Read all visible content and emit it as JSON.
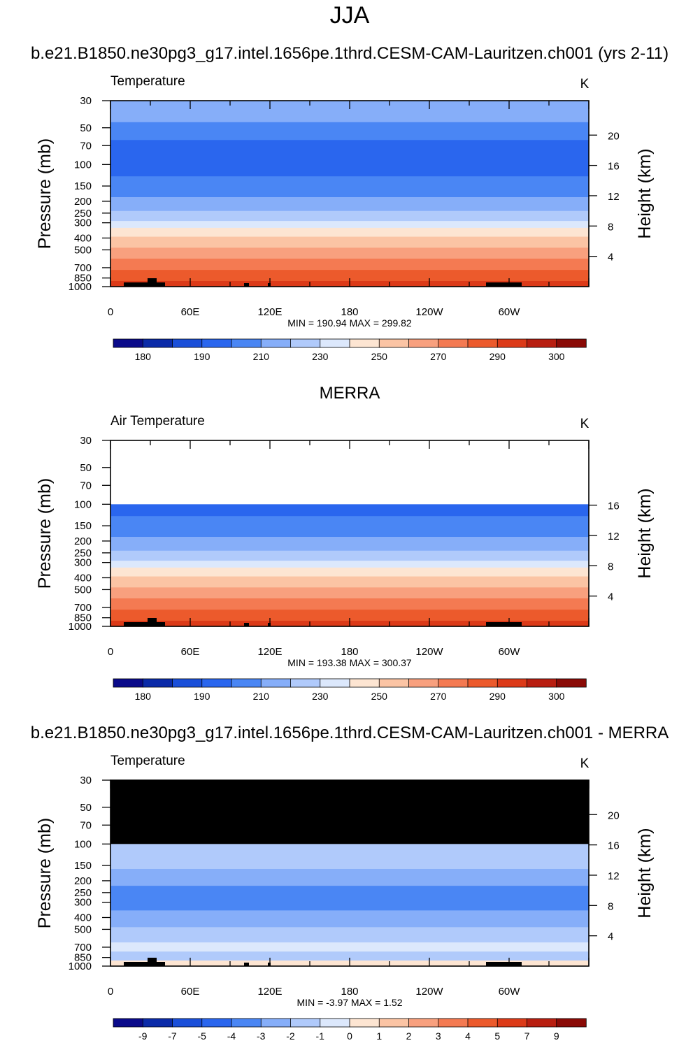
{
  "page_title": "JJA",
  "chart_data": [
    {
      "type": "heatmap",
      "panel_heading": "b.e21.B1850.ne30pg3_g17.intel.1656pe.1thrd.CESM-CAM-Lauritzen.ch001 (yrs 2-11)",
      "field_label": "Temperature",
      "units": "K",
      "ylabel": "Pressure (mb)",
      "ylabel_right": "Height (km)",
      "y_ticks": [
        "30",
        "50",
        "70",
        "100",
        "150",
        "200",
        "250",
        "300",
        "400",
        "500",
        "700",
        "850",
        "1000"
      ],
      "y_ticks_right": [
        "20",
        "16",
        "12",
        "8",
        "4"
      ],
      "x_ticks": [
        "0",
        "60E",
        "120E",
        "180",
        "120W",
        "60W"
      ],
      "stats": "MIN = 190.94  MAX = 299.82",
      "min": 190.94,
      "max": 299.82,
      "colorbar_labels": [
        "180",
        "190",
        "210",
        "230",
        "250",
        "270",
        "290",
        "300"
      ],
      "bands": [
        {
          "p_top": 30,
          "p_bot": 45,
          "value": 215
        },
        {
          "p_top": 45,
          "p_bot": 63,
          "value": 205
        },
        {
          "p_top": 63,
          "p_bot": 125,
          "value": 195
        },
        {
          "p_top": 125,
          "p_bot": 185,
          "value": 205
        },
        {
          "p_top": 185,
          "p_bot": 240,
          "value": 215
        },
        {
          "p_top": 240,
          "p_bot": 290,
          "value": 225
        },
        {
          "p_top": 290,
          "p_bot": 330,
          "value": 235
        },
        {
          "p_top": 330,
          "p_bot": 390,
          "value": 245
        },
        {
          "p_top": 390,
          "p_bot": 480,
          "value": 255
        },
        {
          "p_top": 480,
          "p_bot": 590,
          "value": 265
        },
        {
          "p_top": 590,
          "p_bot": 730,
          "value": 275
        },
        {
          "p_top": 730,
          "p_bot": 900,
          "value": 285
        },
        {
          "p_top": 900,
          "p_bot": 1000,
          "value": 293
        }
      ]
    },
    {
      "type": "heatmap",
      "panel_heading": "MERRA",
      "field_label": "Air Temperature",
      "units": "K",
      "ylabel": "Pressure (mb)",
      "ylabel_right": "Height (km)",
      "y_ticks": [
        "30",
        "50",
        "70",
        "100",
        "150",
        "200",
        "250",
        "300",
        "400",
        "500",
        "700",
        "850",
        "1000"
      ],
      "y_ticks_right": [
        "16",
        "12",
        "8",
        "4"
      ],
      "x_ticks": [
        "0",
        "60E",
        "120E",
        "180",
        "120W",
        "60W"
      ],
      "stats": "MIN = 193.38  MAX = 300.37",
      "min": 193.38,
      "max": 300.37,
      "colorbar_labels": [
        "180",
        "190",
        "210",
        "230",
        "250",
        "270",
        "290",
        "300"
      ],
      "bands": [
        {
          "p_top": 100,
          "p_bot": 125,
          "value": 195
        },
        {
          "p_top": 125,
          "p_bot": 185,
          "value": 205
        },
        {
          "p_top": 185,
          "p_bot": 240,
          "value": 215
        },
        {
          "p_top": 240,
          "p_bot": 290,
          "value": 225
        },
        {
          "p_top": 290,
          "p_bot": 330,
          "value": 235
        },
        {
          "p_top": 330,
          "p_bot": 390,
          "value": 245
        },
        {
          "p_top": 390,
          "p_bot": 480,
          "value": 255
        },
        {
          "p_top": 480,
          "p_bot": 590,
          "value": 265
        },
        {
          "p_top": 590,
          "p_bot": 730,
          "value": 275
        },
        {
          "p_top": 730,
          "p_bot": 900,
          "value": 285
        },
        {
          "p_top": 900,
          "p_bot": 1000,
          "value": 293
        }
      ]
    },
    {
      "type": "heatmap",
      "panel_heading": "b.e21.B1850.ne30pg3_g17.intel.1656pe.1thrd.CESM-CAM-Lauritzen.ch001 - MERRA",
      "field_label": "Temperature",
      "units": "K",
      "ylabel": "Pressure (mb)",
      "ylabel_right": "Height (km)",
      "y_ticks": [
        "30",
        "50",
        "70",
        "100",
        "150",
        "200",
        "250",
        "300",
        "400",
        "500",
        "700",
        "850",
        "1000"
      ],
      "y_ticks_right": [
        "20",
        "16",
        "12",
        "8",
        "4"
      ],
      "x_ticks": [
        "0",
        "60E",
        "120E",
        "180",
        "120W",
        "60W"
      ],
      "stats": "MIN =  -3.97  MAX =   1.52",
      "min": -3.97,
      "max": 1.52,
      "colorbar_labels": [
        "-9",
        "-7",
        "-5",
        "-4",
        "-3",
        "-2",
        "-1",
        "0",
        "1",
        "2",
        "3",
        "4",
        "5",
        "7",
        "9"
      ],
      "missing_above_p": 100,
      "bands": [
        {
          "p_top": 100,
          "p_bot": 160,
          "value": -1.5
        },
        {
          "p_top": 160,
          "p_bot": 220,
          "value": -2.5
        },
        {
          "p_top": 220,
          "p_bot": 350,
          "value": -3.5
        },
        {
          "p_top": 350,
          "p_bot": 480,
          "value": -2.5
        },
        {
          "p_top": 480,
          "p_bot": 640,
          "value": -1.5
        },
        {
          "p_top": 640,
          "p_bot": 760,
          "value": -0.5
        },
        {
          "p_top": 760,
          "p_bot": 900,
          "value": -1.5
        },
        {
          "p_top": 900,
          "p_bot": 1000,
          "value": 0.5
        }
      ]
    }
  ]
}
